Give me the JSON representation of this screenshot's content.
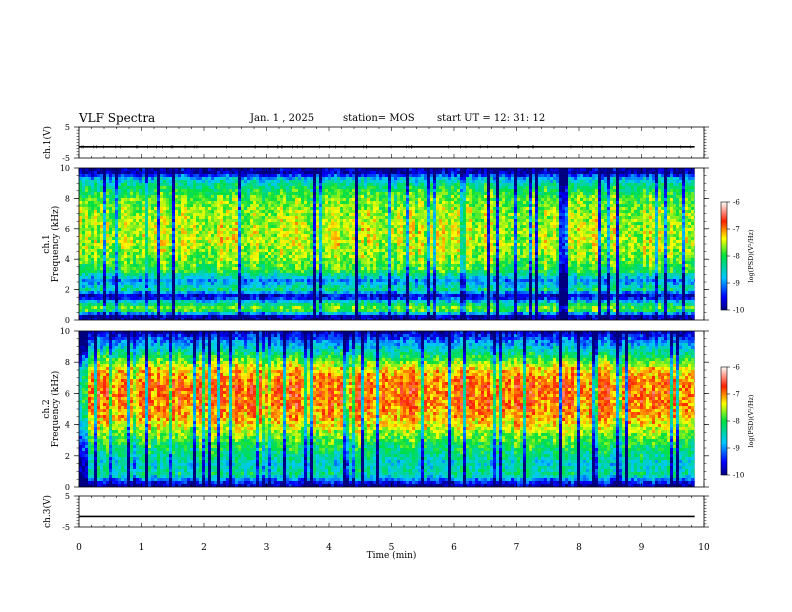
{
  "header": {
    "title": "VLF Spectra",
    "date": "Jan. 1 , 2025",
    "station": "station= MOS",
    "start": "start UT =  12: 31: 12"
  },
  "chart_data": [
    {
      "type": "line",
      "panel": "ch1-waveform",
      "ylabel": "ch.1(V)",
      "ylim": [
        -5,
        5
      ],
      "yticks": [
        "5",
        "-5"
      ],
      "xlim": [
        0,
        10
      ],
      "series": [
        {
          "x": [
            0,
            9.85
          ],
          "values": [
            -1.4,
            -1.4
          ]
        }
      ]
    },
    {
      "type": "heatmap",
      "panel": "ch1-spectrogram",
      "ylabel": [
        "ch.1",
        "Frequency (kHz)"
      ],
      "ylim": [
        0,
        10
      ],
      "yticks": [
        "0",
        "2",
        "4",
        "6",
        "8",
        "10"
      ],
      "xlim": [
        0,
        10
      ],
      "data_xmax": 9.85,
      "colorbar": {
        "label": "log(PSD)(V²/Hz)",
        "range": [
          -10,
          -6
        ],
        "ticks": [
          "-6",
          "-7",
          "-8",
          "-9",
          "-10"
        ]
      },
      "profile_log_psd": [
        {
          "freq": 0.25,
          "value": -9.8
        },
        {
          "freq": 0.7,
          "value": -7.6
        },
        {
          "freq": 1.1,
          "value": -8.3
        },
        {
          "freq": 1.55,
          "value": -9.8
        },
        {
          "freq": 2.0,
          "value": -8.3
        },
        {
          "freq": 2.6,
          "value": -9.0
        },
        {
          "freq": 3.2,
          "value": -8.0
        },
        {
          "freq": 4.0,
          "value": -7.7
        },
        {
          "freq": 5.0,
          "value": -7.5
        },
        {
          "freq": 6.0,
          "value": -7.5
        },
        {
          "freq": 7.0,
          "value": -7.6
        },
        {
          "freq": 8.0,
          "value": -7.8
        },
        {
          "freq": 8.8,
          "value": -8.2
        },
        {
          "freq": 9.3,
          "value": -8.8
        },
        {
          "freq": 9.7,
          "value": -9.8
        }
      ]
    },
    {
      "type": "heatmap",
      "panel": "ch2-spectrogram",
      "ylabel": [
        "ch.2",
        "Frequency (kHz)"
      ],
      "ylim": [
        0,
        10
      ],
      "yticks": [
        "0",
        "2",
        "4",
        "6",
        "8",
        "10"
      ],
      "xlim": [
        0,
        10
      ],
      "data_xmax": 9.85,
      "colorbar": {
        "label": "log(PSD)(V²/Hz)",
        "range": [
          -10,
          -6
        ],
        "ticks": [
          "-6",
          "-7",
          "-8",
          "-9",
          "-10"
        ]
      },
      "profile_log_psd": [
        {
          "freq": 0.15,
          "value": -9.8
        },
        {
          "freq": 0.8,
          "value": -8.3
        },
        {
          "freq": 1.5,
          "value": -8.6
        },
        {
          "freq": 2.0,
          "value": -8.3
        },
        {
          "freq": 2.8,
          "value": -8.0
        },
        {
          "freq": 3.5,
          "value": -7.6
        },
        {
          "freq": 4.5,
          "value": -7.1
        },
        {
          "freq": 5.5,
          "value": -6.9
        },
        {
          "freq": 6.5,
          "value": -6.9
        },
        {
          "freq": 7.5,
          "value": -7.2
        },
        {
          "freq": 8.3,
          "value": -8.0
        },
        {
          "freq": 9.0,
          "value": -8.7
        },
        {
          "freq": 9.6,
          "value": -9.3
        },
        {
          "freq": 9.9,
          "value": -9.7
        }
      ]
    },
    {
      "type": "line",
      "panel": "ch3-waveform",
      "ylabel": "ch.3(V)",
      "ylim": [
        -5,
        5
      ],
      "yticks": [
        "5",
        "-5"
      ],
      "xlim": [
        0,
        10
      ],
      "xlabel": "Time (min)",
      "xticks": [
        "0",
        "1",
        "2",
        "3",
        "4",
        "5",
        "6",
        "7",
        "8",
        "9",
        "10"
      ],
      "series": [
        {
          "x": [
            0,
            9.85
          ],
          "values": [
            -1.6,
            -1.6
          ]
        }
      ]
    }
  ]
}
